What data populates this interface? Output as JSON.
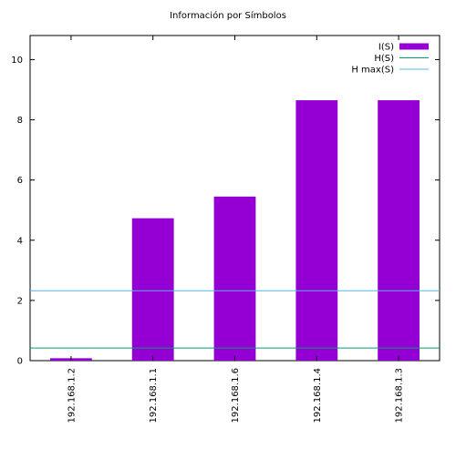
{
  "chart_data": {
    "type": "bar",
    "title": "Información por Símbolos",
    "categories": [
      "192.168.1.2",
      "192.168.1.1",
      "192.168.1.6",
      "192.168.1.4",
      "192.168.1.3"
    ],
    "series": [
      {
        "name": "I(S)",
        "values": [
          0.08,
          4.73,
          5.45,
          8.65,
          8.65
        ],
        "color": "#9400d3"
      }
    ],
    "reference_lines": [
      {
        "name": "H(S)",
        "value": 0.42,
        "color": "#009e73"
      },
      {
        "name": "H max(S)",
        "value": 2.32,
        "color": "#56b4e9"
      }
    ],
    "xlabel": "",
    "ylabel": "",
    "ylim": [
      0,
      10.8
    ],
    "yticks": [
      "0",
      "2",
      "4",
      "6",
      "8",
      "10"
    ],
    "legend_position": "top-right",
    "grid": false
  }
}
